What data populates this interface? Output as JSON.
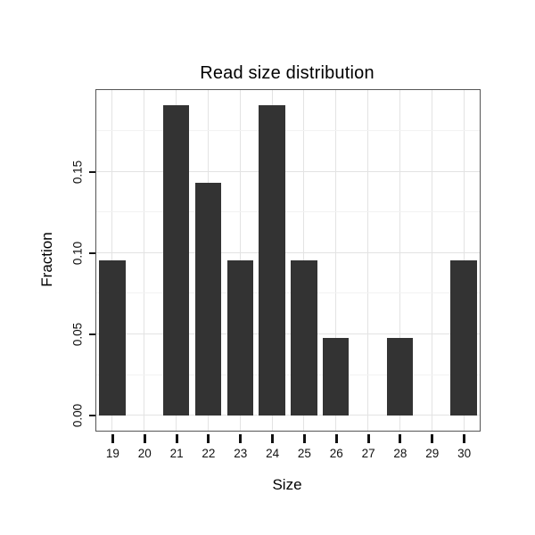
{
  "chart_data": {
    "type": "bar",
    "title": "Read size distribution",
    "xlabel": "Size",
    "ylabel": "Fraction",
    "categories": [
      "19",
      "20",
      "21",
      "22",
      "23",
      "24",
      "25",
      "26",
      "27",
      "28",
      "29",
      "30"
    ],
    "values": [
      0.0952,
      0,
      0.1905,
      0.1429,
      0.0952,
      0.1905,
      0.0952,
      0.0476,
      0,
      0.0476,
      0,
      0.0952
    ],
    "yticks": [
      0,
      0.05,
      0.1,
      0.15
    ],
    "ytick_labels": [
      "0.00",
      "0.05",
      "0.10",
      "0.15"
    ],
    "yticks_minor": [
      0.025,
      0.075,
      0.125,
      0.175
    ],
    "ylim": [
      -0.0095,
      0.2
    ],
    "grid": true,
    "legend": "none",
    "colors": {
      "bar": "#333333",
      "grid_major": "#e3e3e3",
      "grid_minor": "#f2f2f2",
      "panel_border": "#555555",
      "panel_bg": "#ffffff",
      "tick": "#111111",
      "text": "#000000"
    }
  }
}
